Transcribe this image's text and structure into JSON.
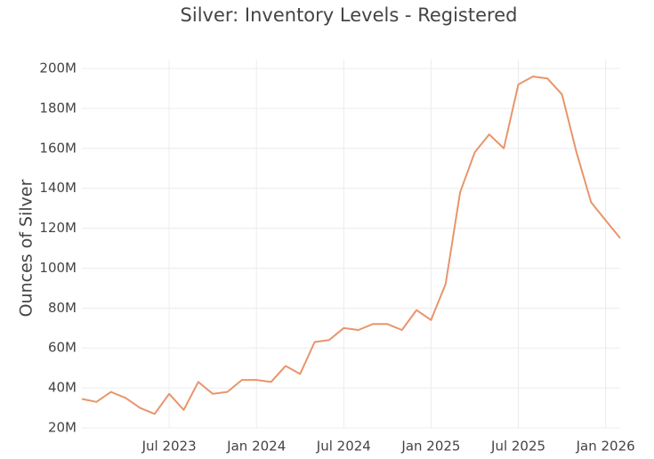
{
  "chart_data": {
    "type": "line",
    "title": "Silver: Inventory Levels - Registered",
    "y_label": "Ounces of Silver",
    "color": "#e8956b",
    "grid": true,
    "x": [
      "2023-01",
      "2023-02",
      "2023-03",
      "2023-04",
      "2023-05",
      "2023-06",
      "2023-07",
      "2023-08",
      "2023-09",
      "2023-10",
      "2023-11",
      "2023-12",
      "2024-01",
      "2024-02",
      "2024-03",
      "2024-04",
      "2024-05",
      "2024-06",
      "2024-07",
      "2024-08",
      "2024-09",
      "2024-10",
      "2024-11",
      "2024-12",
      "2025-01",
      "2025-02",
      "2025-03",
      "2025-04",
      "2025-05",
      "2025-06",
      "2025-07",
      "2025-08",
      "2025-09",
      "2025-10",
      "2025-11",
      "2025-12",
      "2026-01",
      "2026-02"
    ],
    "series": [
      {
        "name": "Registered",
        "color": "#e8956b",
        "values": [
          34500000,
          33000000,
          38000000,
          35000000,
          30000000,
          27000000,
          37000000,
          29000000,
          43000000,
          37000000,
          38000000,
          44000000,
          44000000,
          43000000,
          51000000,
          47000000,
          63000000,
          64000000,
          70000000,
          69000000,
          72000000,
          72000000,
          69000000,
          79000000,
          74000000,
          92000000,
          138000000,
          158000000,
          167000000,
          160000000,
          192000000,
          196000000,
          195000000,
          187000000,
          158000000,
          133000000,
          124000000,
          115000000
        ]
      }
    ],
    "xlim": [
      "2023-01",
      "2026-02"
    ],
    "xticks": [
      {
        "value": "2023-07",
        "label": "Jul 2023"
      },
      {
        "value": "2024-01",
        "label": "Jan 2024"
      },
      {
        "value": "2024-07",
        "label": "Jul 2024"
      },
      {
        "value": "2025-01",
        "label": "Jan 2025"
      },
      {
        "value": "2025-07",
        "label": "Jul 2025"
      },
      {
        "value": "2026-01",
        "label": "Jan 2026"
      }
    ],
    "ylim": [
      20000000,
      200000000
    ],
    "yticks": [
      {
        "value": 20000000,
        "label": "20M"
      },
      {
        "value": 40000000,
        "label": "40M"
      },
      {
        "value": 60000000,
        "label": "60M"
      },
      {
        "value": 80000000,
        "label": "80M"
      },
      {
        "value": 100000000,
        "label": "100M"
      },
      {
        "value": 120000000,
        "label": "120M"
      },
      {
        "value": 140000000,
        "label": "140M"
      },
      {
        "value": 160000000,
        "label": "160M"
      },
      {
        "value": 180000000,
        "label": "180M"
      },
      {
        "value": 200000000,
        "label": "200M"
      }
    ]
  }
}
